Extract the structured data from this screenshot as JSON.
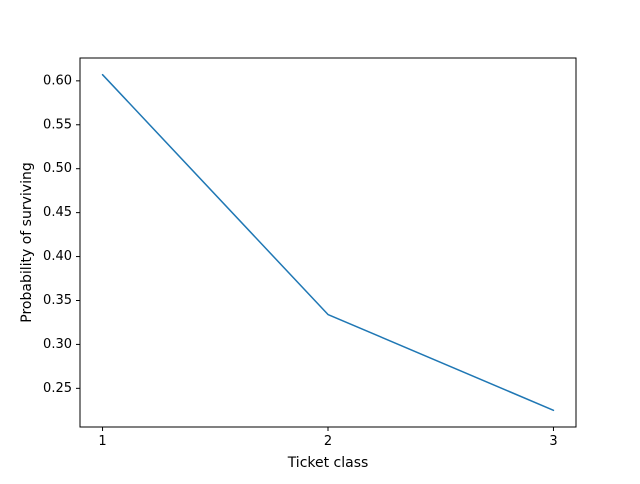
{
  "chart_data": {
    "type": "line",
    "title": "",
    "xlabel": "Ticket class",
    "ylabel": "Probability of surviving",
    "x": [
      1,
      2,
      3
    ],
    "series": [
      {
        "values": [
          0.607,
          0.334,
          0.225
        ]
      }
    ],
    "xticks": [
      "1",
      "2",
      "3"
    ],
    "yticks": [
      "0.25",
      "0.30",
      "0.35",
      "0.40",
      "0.45",
      "0.50",
      "0.55",
      "0.60"
    ],
    "xlim": [
      0.9,
      3.1
    ],
    "ylim": [
      0.206,
      0.626
    ],
    "grid": false,
    "legend": "none",
    "line_color": "#1f77b4"
  }
}
